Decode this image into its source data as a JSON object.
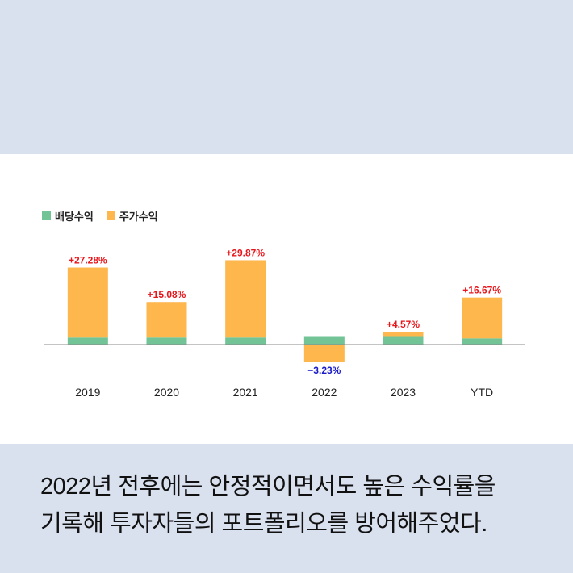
{
  "legend": {
    "dividend": {
      "label": "배당수익",
      "color": "#72c497"
    },
    "price": {
      "label": "주가수익",
      "color": "#fdb74d"
    }
  },
  "chart_data": {
    "type": "bar",
    "stacked": true,
    "categories": [
      "2019",
      "2020",
      "2021",
      "2022",
      "2023",
      "YTD"
    ],
    "series": [
      {
        "name": "배당수익",
        "values": [
          2.5,
          2.5,
          2.5,
          3.0,
          3.0,
          2.2
        ]
      },
      {
        "name": "주가수익",
        "values": [
          24.78,
          12.58,
          27.37,
          -6.23,
          1.57,
          14.47
        ]
      }
    ],
    "data_labels": [
      "+27.28%",
      "+15.08%",
      "+29.87%",
      "−3.23%",
      "+4.57%",
      "+16.67%"
    ],
    "totals": [
      27.28,
      15.08,
      29.87,
      -3.23,
      4.57,
      16.67
    ],
    "ylim": [
      -6.5,
      30
    ],
    "label_colors": {
      "positive": "#e8161b",
      "negative": "#1a1ac8"
    },
    "axis_color": "#888888",
    "grid": false,
    "legend_position": "top-left"
  },
  "caption": {
    "line1": "2022년 전후에는 안정적이면서도 높은 수익률을",
    "line2": "기록해 투자자들의 포트폴리오를 방어해주었다."
  }
}
